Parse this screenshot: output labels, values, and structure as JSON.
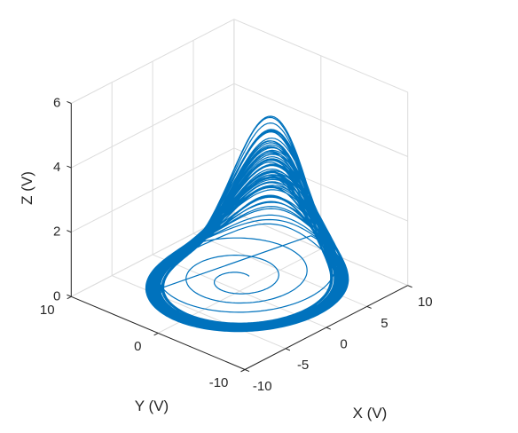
{
  "chart_data": {
    "type": "line3d",
    "title": "",
    "xlabel": "X (V)",
    "ylabel": "Y (V)",
    "zlabel": "Z (V)",
    "xlim": [
      -10,
      10
    ],
    "ylim": [
      -10,
      10
    ],
    "zlim": [
      0,
      6
    ],
    "x_ticks": [
      -10,
      -5,
      0,
      5,
      10
    ],
    "y_ticks": [
      -10,
      0,
      10
    ],
    "z_ticks": [
      0,
      2,
      4,
      6
    ],
    "x_tick_labels": [
      "-10",
      "-5",
      "0",
      "5",
      "10"
    ],
    "y_tick_labels": [
      "-10",
      "0",
      "10"
    ],
    "z_tick_labels": [
      "0",
      "2",
      "4",
      "6"
    ],
    "grid": true,
    "legend": "none",
    "series": [
      {
        "color": "#0072BD",
        "description_points": [
          [
            0,
            0,
            0.3
          ],
          [
            3,
            0,
            0.3
          ],
          [
            0,
            3,
            0.3
          ],
          [
            -4.5,
            -1,
            0.3
          ],
          [
            0,
            -5,
            0.3
          ],
          [
            6,
            0,
            0.3
          ],
          [
            -1,
            6.5,
            0.3
          ],
          [
            -8,
            0,
            0.4
          ],
          [
            0,
            -8,
            0.6
          ],
          [
            7.8,
            0,
            2
          ],
          [
            5,
            3,
            5.6
          ]
        ]
      }
    ]
  }
}
